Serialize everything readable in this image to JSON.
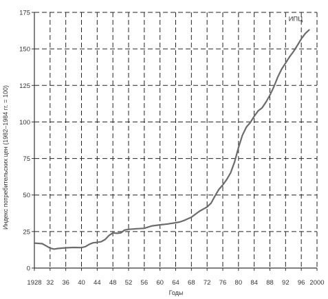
{
  "header_text": "",
  "chart_data": {
    "type": "line",
    "title": "",
    "xlabel": "Годы",
    "ylabel": "Индекс потребительских цен (1982–1984 гг. = 100)",
    "xlim": [
      1928,
      2000
    ],
    "ylim": [
      0,
      175
    ],
    "x_ticks": [
      1928,
      1932,
      1936,
      1940,
      1944,
      1948,
      1952,
      1956,
      1960,
      1964,
      1968,
      1972,
      1976,
      1980,
      1984,
      1988,
      1992,
      1996,
      2000
    ],
    "x_tick_labels": [
      "1928",
      "32",
      "36",
      "40",
      "44",
      "48",
      "52",
      "56",
      "60",
      "64",
      "68",
      "72",
      "76",
      "80",
      "84",
      "88",
      "92",
      "96",
      "2000"
    ],
    "y_ticks": [
      0,
      25,
      50,
      75,
      100,
      125,
      150,
      175
    ],
    "grid": true,
    "series": [
      {
        "name": "ИПЦ",
        "color": "#6b6b6b",
        "x": [
          1928,
          1930,
          1931,
          1932,
          1933,
          1934,
          1936,
          1938,
          1940,
          1941,
          1942,
          1943,
          1944,
          1945,
          1946,
          1947,
          1948,
          1949,
          1950,
          1951,
          1952,
          1954,
          1956,
          1957,
          1958,
          1960,
          1962,
          1964,
          1965,
          1966,
          1968,
          1970,
          1972,
          1973,
          1974,
          1975,
          1976,
          1977,
          1978,
          1979,
          1980,
          1981,
          1982,
          1983,
          1984,
          1985,
          1986,
          1987,
          1988,
          1989,
          1990,
          1991,
          1992,
          1993,
          1994,
          1995,
          1996,
          1997,
          1998
        ],
        "values": [
          17.1,
          16.7,
          15.2,
          13.7,
          13.0,
          13.4,
          13.9,
          14.1,
          14.0,
          14.7,
          16.3,
          17.3,
          17.6,
          18.0,
          19.5,
          22.3,
          24.1,
          23.8,
          24.1,
          26.0,
          26.5,
          26.9,
          27.2,
          28.1,
          28.9,
          29.6,
          30.2,
          31.0,
          31.5,
          32.4,
          34.8,
          38.8,
          41.8,
          44.4,
          49.3,
          53.8,
          56.9,
          60.6,
          65.2,
          72.6,
          82.4,
          90.9,
          96.5,
          99.6,
          103.9,
          107.6,
          109.6,
          113.6,
          118.3,
          124.0,
          130.7,
          136.2,
          140.3,
          144.5,
          148.2,
          152.4,
          156.9,
          160.5,
          163.0
        ]
      }
    ]
  }
}
